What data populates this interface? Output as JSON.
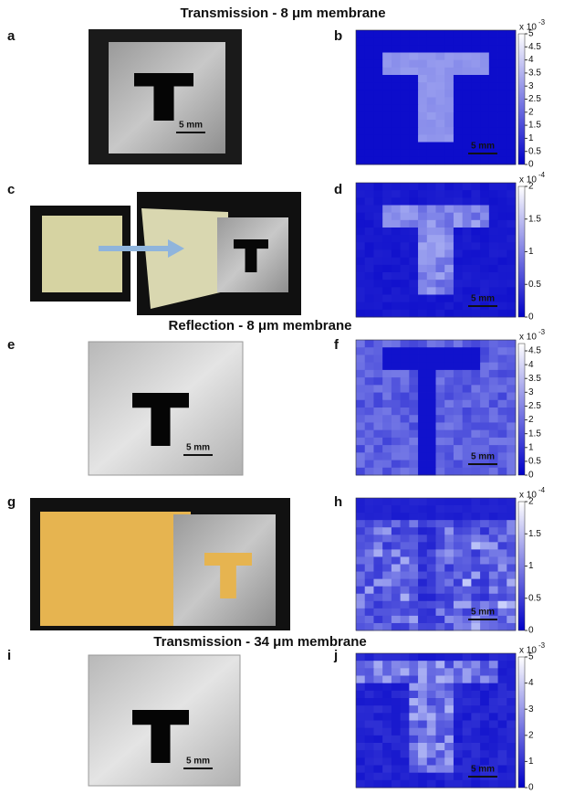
{
  "sections": [
    {
      "title": "Transmission - 8 μm membrane"
    },
    {
      "title": "Reflection - 8 μm membrane"
    },
    {
      "title": "Transmission - 34 μm membrane"
    }
  ],
  "panels": [
    {
      "letter": "a",
      "scale_bar": "5 mm"
    },
    {
      "letter": "b",
      "scale_bar": "5 mm",
      "colorbar": {
        "multiplier": "x 10",
        "exponent": "-3",
        "ticks": [
          0,
          0.5,
          1,
          1.5,
          2,
          2.5,
          3,
          3.5,
          4,
          4.5,
          5
        ]
      }
    },
    {
      "letter": "c"
    },
    {
      "letter": "d",
      "scale_bar": "5 mm",
      "colorbar": {
        "multiplier": "x 10",
        "exponent": "-4",
        "ticks": [
          0,
          0.5,
          1,
          1.5,
          2
        ]
      }
    },
    {
      "letter": "e",
      "scale_bar": "5 mm"
    },
    {
      "letter": "f",
      "scale_bar": "5 mm",
      "colorbar": {
        "multiplier": "x 10",
        "exponent": "-3",
        "ticks": [
          0,
          0.5,
          1,
          1.5,
          2,
          2.5,
          3,
          3.5,
          4,
          4.5
        ]
      }
    },
    {
      "letter": "g"
    },
    {
      "letter": "h",
      "scale_bar": "5 mm",
      "colorbar": {
        "multiplier": "x 10",
        "exponent": "-4",
        "ticks": [
          0,
          0.5,
          1,
          1.5,
          2
        ]
      }
    },
    {
      "letter": "i",
      "scale_bar": "5 mm"
    },
    {
      "letter": "j",
      "scale_bar": "5 mm",
      "colorbar": {
        "multiplier": "x 10",
        "exponent": "-3",
        "ticks": [
          0,
          1,
          2,
          3,
          4,
          5
        ]
      }
    }
  ]
}
